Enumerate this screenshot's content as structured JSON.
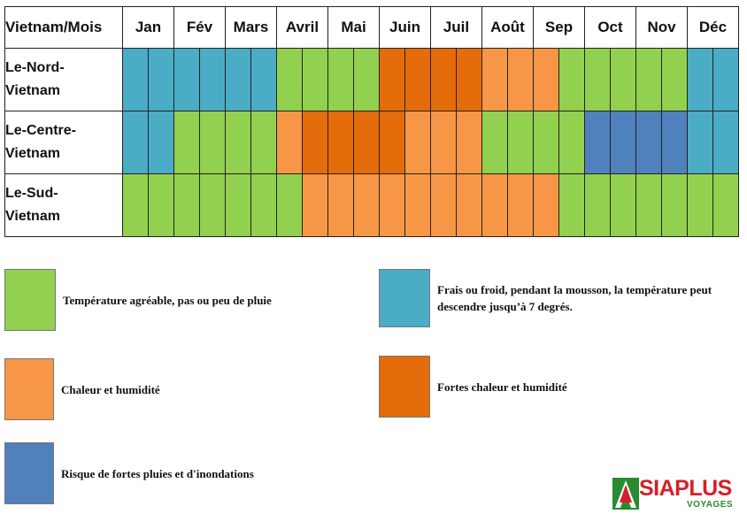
{
  "colors": {
    "agreable": "#92d050",
    "froid": "#4bacc6",
    "chaleur": "#f79646",
    "fortes_chaleur": "#e46c0a",
    "inondations": "#4f81bd"
  },
  "chart_data": {
    "type": "heatmap",
    "corner_label": "Vietnam/Mois",
    "months": [
      "Jan",
      "Fév",
      "Mars",
      "Avril",
      "Mai",
      "Juin",
      "Juil",
      "Août",
      "Sep",
      "Oct",
      "Nov",
      "Déc"
    ],
    "half_month_columns": 2,
    "rows": [
      {
        "region": "Le-Nord-\nVietnam",
        "cells": [
          "froid",
          "froid",
          "froid",
          "froid",
          "froid",
          "froid",
          "agreable",
          "agreable",
          "agreable",
          "agreable",
          "fortes_chaleur",
          "fortes_chaleur",
          "fortes_chaleur",
          "fortes_chaleur",
          "chaleur",
          "chaleur",
          "chaleur",
          "agreable",
          "agreable",
          "agreable",
          "agreable",
          "agreable",
          "froid",
          "froid"
        ]
      },
      {
        "region": "Le-Centre-\nVietnam",
        "cells": [
          "froid",
          "froid",
          "agreable",
          "agreable",
          "agreable",
          "agreable",
          "chaleur",
          "fortes_chaleur",
          "fortes_chaleur",
          "fortes_chaleur",
          "fortes_chaleur",
          "chaleur",
          "chaleur",
          "chaleur",
          "agreable",
          "agreable",
          "agreable",
          "agreable",
          "inondations",
          "inondations",
          "inondations",
          "inondations",
          "froid",
          "froid"
        ]
      },
      {
        "region": "Le-Sud-\nVietnam",
        "cells": [
          "agreable",
          "agreable",
          "agreable",
          "agreable",
          "agreable",
          "agreable",
          "agreable",
          "chaleur",
          "chaleur",
          "chaleur",
          "chaleur",
          "chaleur",
          "chaleur",
          "chaleur",
          "chaleur",
          "chaleur",
          "chaleur",
          "agreable",
          "agreable",
          "agreable",
          "agreable",
          "agreable",
          "agreable",
          "agreable"
        ]
      }
    ],
    "legend": [
      {
        "key": "agreable",
        "label": "Température agréable, pas ou peu de pluie"
      },
      {
        "key": "froid",
        "label": "Frais ou froid, pendant la mousson,  la température peut descendre jusqu’à 7 degrés."
      },
      {
        "key": "chaleur",
        "label": "Chaleur et humidité"
      },
      {
        "key": "fortes_chaleur",
        "label": "Fortes chaleur et humidité"
      },
      {
        "key": "inondations",
        "label": "Risque de fortes pluies et d'inondations"
      }
    ]
  },
  "logo": {
    "brand": "SIAPLUS",
    "sub": "VOYAGES"
  }
}
